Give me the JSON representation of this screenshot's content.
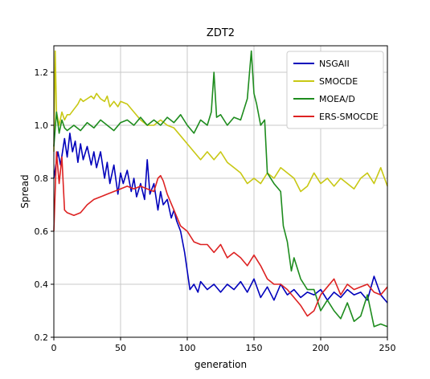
{
  "chart_data": {
    "type": "line",
    "title": "ZDT2",
    "xlabel": "generation",
    "ylabel": "Spread",
    "xlim": [
      0,
      250
    ],
    "ylim": [
      0.2,
      1.3
    ],
    "xticks": [
      0,
      50,
      100,
      150,
      200,
      250
    ],
    "yticks": [
      0.2,
      0.4,
      0.6,
      0.8,
      1.0,
      1.2
    ],
    "xtick_labels": [
      "0",
      "50",
      "100",
      "150",
      "200",
      "250"
    ],
    "ytick_labels": [
      "0.2",
      "0.4",
      "0.6",
      "0.8",
      "1.0",
      "1.2"
    ],
    "grid": true,
    "legend_position": "top-right",
    "series": [
      {
        "name": "NSGAII",
        "color": "#0000bb",
        "x": [
          0,
          3,
          5,
          8,
          10,
          12,
          14,
          16,
          18,
          20,
          22,
          25,
          28,
          30,
          32,
          35,
          38,
          40,
          42,
          45,
          48,
          50,
          52,
          55,
          58,
          60,
          62,
          65,
          68,
          70,
          72,
          75,
          78,
          80,
          82,
          85,
          88,
          90,
          92,
          95,
          98,
          100,
          102,
          105,
          108,
          110,
          115,
          120,
          125,
          130,
          135,
          140,
          145,
          150,
          155,
          160,
          165,
          170,
          175,
          180,
          185,
          190,
          195,
          200,
          205,
          210,
          215,
          220,
          225,
          230,
          235,
          240,
          245,
          250
        ],
        "y": [
          0.8,
          0.9,
          0.85,
          0.95,
          0.88,
          0.97,
          0.9,
          0.94,
          0.86,
          0.93,
          0.87,
          0.92,
          0.85,
          0.9,
          0.84,
          0.9,
          0.8,
          0.86,
          0.78,
          0.85,
          0.74,
          0.82,
          0.78,
          0.83,
          0.75,
          0.8,
          0.73,
          0.78,
          0.72,
          0.87,
          0.74,
          0.78,
          0.68,
          0.75,
          0.7,
          0.72,
          0.65,
          0.68,
          0.64,
          0.6,
          0.52,
          0.45,
          0.38,
          0.4,
          0.37,
          0.41,
          0.38,
          0.4,
          0.37,
          0.4,
          0.38,
          0.41,
          0.37,
          0.42,
          0.35,
          0.39,
          0.34,
          0.4,
          0.36,
          0.38,
          0.35,
          0.37,
          0.36,
          0.38,
          0.34,
          0.37,
          0.35,
          0.38,
          0.36,
          0.37,
          0.34,
          0.43,
          0.36,
          0.33
        ]
      },
      {
        "name": "SMOCDE",
        "color": "#c8c814",
        "x": [
          0,
          1,
          2,
          4,
          6,
          8,
          10,
          12,
          15,
          18,
          20,
          22,
          25,
          28,
          30,
          32,
          35,
          38,
          40,
          42,
          45,
          48,
          50,
          55,
          60,
          65,
          70,
          75,
          80,
          85,
          90,
          95,
          100,
          105,
          110,
          115,
          120,
          125,
          130,
          135,
          140,
          145,
          150,
          155,
          160,
          165,
          170,
          175,
          180,
          185,
          190,
          195,
          200,
          205,
          210,
          215,
          220,
          225,
          230,
          235,
          240,
          245,
          250
        ],
        "y": [
          0.9,
          1.28,
          1.05,
          1.0,
          1.05,
          1.02,
          1.04,
          1.04,
          1.06,
          1.08,
          1.1,
          1.09,
          1.1,
          1.11,
          1.1,
          1.12,
          1.1,
          1.09,
          1.11,
          1.07,
          1.09,
          1.07,
          1.09,
          1.08,
          1.05,
          1.02,
          1.0,
          1.0,
          1.02,
          1.0,
          0.99,
          0.96,
          0.93,
          0.9,
          0.87,
          0.9,
          0.87,
          0.9,
          0.86,
          0.84,
          0.82,
          0.78,
          0.8,
          0.78,
          0.82,
          0.8,
          0.84,
          0.82,
          0.8,
          0.75,
          0.77,
          0.82,
          0.78,
          0.8,
          0.77,
          0.8,
          0.78,
          0.76,
          0.8,
          0.82,
          0.78,
          0.84,
          0.77
        ]
      },
      {
        "name": "MOEA/D",
        "color": "#1e8c1e",
        "x": [
          0,
          2,
          4,
          6,
          8,
          10,
          15,
          20,
          25,
          30,
          35,
          40,
          45,
          50,
          55,
          60,
          65,
          70,
          75,
          80,
          85,
          90,
          95,
          100,
          105,
          110,
          115,
          118,
          120,
          122,
          125,
          130,
          135,
          140,
          145,
          148,
          150,
          152,
          155,
          158,
          160,
          165,
          170,
          172,
          175,
          178,
          180,
          185,
          190,
          195,
          200,
          205,
          210,
          215,
          220,
          225,
          230,
          235,
          240,
          245,
          250
        ],
        "y": [
          0.92,
          1.05,
          0.97,
          1.02,
          0.99,
          0.98,
          1.0,
          0.98,
          1.01,
          0.99,
          1.02,
          1.0,
          0.98,
          1.01,
          1.02,
          1.0,
          1.03,
          1.0,
          1.02,
          1.0,
          1.03,
          1.01,
          1.04,
          1.0,
          0.97,
          1.02,
          1.0,
          1.05,
          1.2,
          1.03,
          1.04,
          1.0,
          1.03,
          1.02,
          1.1,
          1.28,
          1.12,
          1.08,
          1.0,
          1.02,
          0.82,
          0.78,
          0.75,
          0.62,
          0.56,
          0.45,
          0.5,
          0.42,
          0.38,
          0.38,
          0.3,
          0.34,
          0.3,
          0.27,
          0.33,
          0.26,
          0.28,
          0.36,
          0.24,
          0.25,
          0.24
        ]
      },
      {
        "name": "ERS-SMOCDE",
        "color": "#dd2222",
        "x": [
          0,
          2,
          4,
          6,
          8,
          10,
          15,
          20,
          25,
          30,
          35,
          40,
          45,
          50,
          55,
          60,
          65,
          70,
          75,
          78,
          80,
          82,
          85,
          90,
          95,
          100,
          105,
          110,
          115,
          120,
          125,
          130,
          135,
          140,
          145,
          150,
          155,
          160,
          165,
          170,
          175,
          180,
          185,
          190,
          195,
          200,
          205,
          210,
          215,
          220,
          225,
          230,
          235,
          240,
          245,
          250
        ],
        "y": [
          0.6,
          0.9,
          0.78,
          0.88,
          0.68,
          0.67,
          0.66,
          0.67,
          0.7,
          0.72,
          0.73,
          0.74,
          0.75,
          0.76,
          0.77,
          0.76,
          0.77,
          0.76,
          0.75,
          0.8,
          0.81,
          0.79,
          0.74,
          0.68,
          0.62,
          0.6,
          0.56,
          0.55,
          0.55,
          0.52,
          0.55,
          0.5,
          0.52,
          0.5,
          0.47,
          0.51,
          0.47,
          0.42,
          0.4,
          0.4,
          0.38,
          0.35,
          0.32,
          0.28,
          0.3,
          0.36,
          0.39,
          0.42,
          0.36,
          0.4,
          0.38,
          0.39,
          0.4,
          0.37,
          0.36,
          0.39
        ]
      }
    ]
  }
}
